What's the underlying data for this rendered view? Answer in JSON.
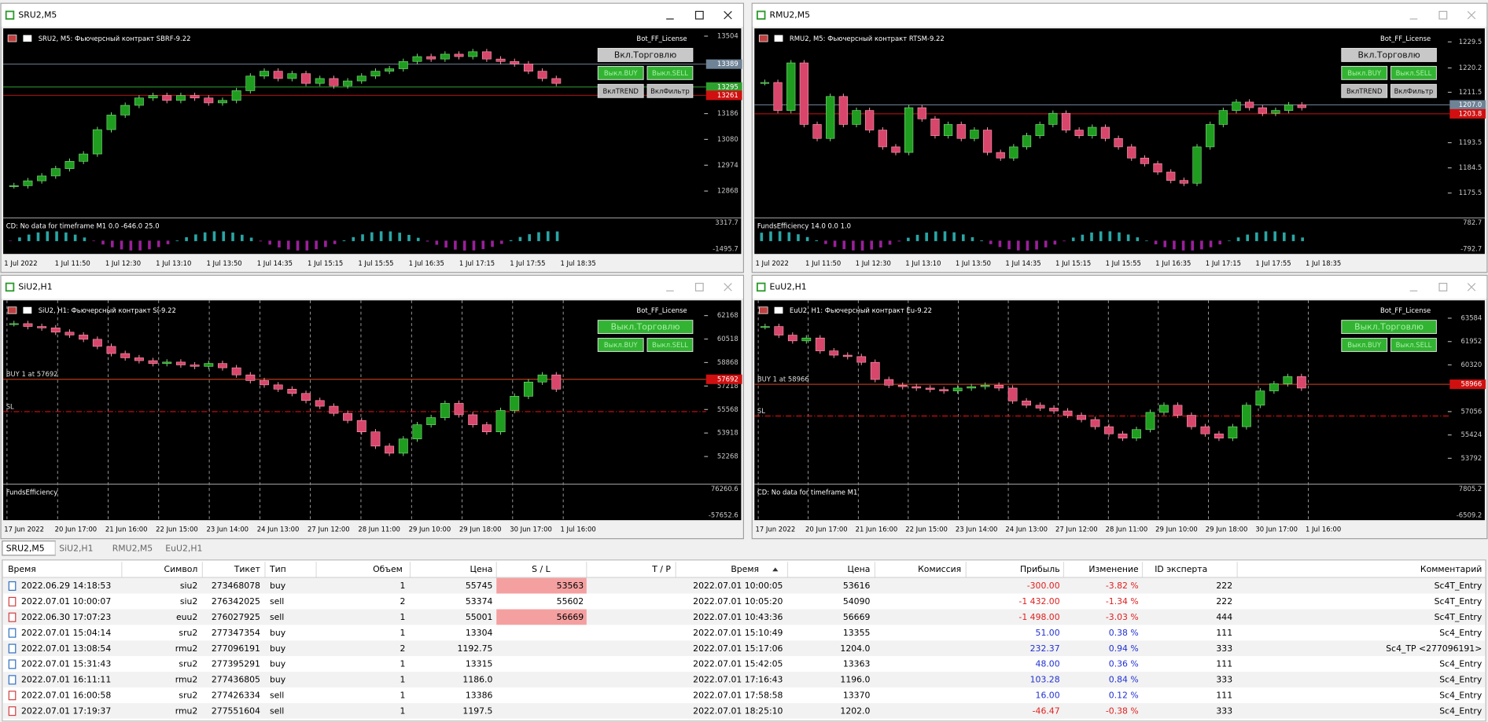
{
  "windows": [
    {
      "title": "SRU2,M5",
      "header": "SRU2, M5:  Фьючерсный контракт SBRF-9.22",
      "license": "Bot_FF_License",
      "buttons": [
        "Вкл.Торговлю",
        "Выкл.BUY",
        "Выкл.SELL",
        "ВклTREND",
        "ВклФильтр"
      ],
      "ylim": [
        12777,
        13524
      ],
      "yticks": [
        13504,
        13186,
        13080,
        12974,
        12868
      ],
      "price_tags": [
        {
          "value": 13389,
          "color": "#6f8396"
        },
        {
          "value": 13295,
          "color": "#2ea02e"
        },
        {
          "value": 13261,
          "color": "#d01010"
        }
      ],
      "notes": [],
      "grid": false,
      "closes": [
        12890,
        12910,
        12930,
        12960,
        12990,
        13020,
        13120,
        13180,
        13220,
        13250,
        13260,
        13240,
        13260,
        13250,
        13230,
        13240,
        13280,
        13340,
        13360,
        13330,
        13350,
        13310,
        13330,
        13300,
        13320,
        13340,
        13360,
        13370,
        13400,
        13420,
        13410,
        13430,
        13420,
        13440,
        13410,
        13400,
        13390,
        13360,
        13330,
        13310
      ],
      "indicator": {
        "label": "CD: No data for timeframe M1 0.0 -646.0 25.0",
        "ticks": [
          3317.7,
          -1495.7
        ]
      },
      "time_labels": [
        "1 Jul 2022",
        "1 Jul 11:50",
        "1 Jul 12:30",
        "1 Jul 13:10",
        "1 Jul 13:50",
        "1 Jul 14:35",
        "1 Jul 15:15",
        "1 Jul 15:55",
        "1 Jul 16:35",
        "1 Jul 17:15",
        "1 Jul 17:55",
        "1 Jul 18:35"
      ]
    },
    {
      "title": "RMU2,M5",
      "header": "RMU2, M5:  Фьючерсный контракт RTSM-9.22",
      "license": "Bot_FF_License",
      "buttons": [
        "Вкл.Торговлю",
        "Выкл.BUY",
        "Выкл.SELL",
        "ВклTREND",
        "ВклФильтр"
      ],
      "ylim": [
        1168.3,
        1233.3
      ],
      "yticks": [
        1229.5,
        1220.2,
        1211.5,
        1193.5,
        1184.5,
        1175.5
      ],
      "price_tags": [
        {
          "value": 1207,
          "label": "1207.0",
          "color": "#6f8396"
        },
        {
          "value": 1203.8,
          "color": "#d01010"
        }
      ],
      "notes": [],
      "grid": false,
      "closes": [
        1215,
        1205,
        1222,
        1200,
        1195,
        1210,
        1200,
        1205,
        1198,
        1192,
        1190,
        1206,
        1202,
        1196,
        1200,
        1195,
        1198,
        1190,
        1188,
        1192,
        1196,
        1200,
        1204,
        1198,
        1196,
        1199,
        1195,
        1192,
        1188,
        1186,
        1183,
        1180,
        1179,
        1192,
        1200,
        1205,
        1208,
        1206,
        1204,
        1205,
        1207,
        1206
      ],
      "indicator": {
        "label": "FundsEfficiency 14.0 0.0 1.0",
        "ticks": [
          782.7,
          -792.7
        ]
      },
      "time_labels": [
        "1 Jul 2022",
        "1 Jul 11:50",
        "1 Jul 12:30",
        "1 Jul 13:10",
        "1 Jul 13:50",
        "1 Jul 14:35",
        "1 Jul 15:15",
        "1 Jul 15:55",
        "1 Jul 16:35",
        "1 Jul 17:15",
        "1 Jul 17:55",
        "1 Jul 18:35"
      ]
    },
    {
      "title": "SiU2,H1",
      "header": "SiU2, H1:  Фьючерсный контракт Si-9.22",
      "license": "Bot_FF_License",
      "buttons": [
        "Выкл.Торговлю",
        "Выкл.BUY",
        "Выкл.SELL"
      ],
      "ylim": [
        50659,
        63034
      ],
      "yticks": [
        62168,
        60518,
        58868,
        57218,
        55568,
        53918,
        52268
      ],
      "price_tags": [
        {
          "value": 57692,
          "color": "#d01010"
        }
      ],
      "notes": [
        {
          "text": "BUY 1 at 57692",
          "value": 57692,
          "color": "#2ea02e"
        },
        {
          "text": "SL",
          "value": 55420,
          "color": "#d01010"
        }
      ],
      "grid": true,
      "closes": [
        61600,
        61400,
        61300,
        61000,
        60800,
        60500,
        60000,
        59500,
        59200,
        59000,
        58800,
        58900,
        58700,
        58600,
        58800,
        58500,
        58000,
        57600,
        57300,
        57000,
        56700,
        56200,
        55800,
        55300,
        54800,
        54000,
        53000,
        52500,
        53500,
        54500,
        55000,
        56000,
        55200,
        54500,
        54000,
        55500,
        56500,
        57500,
        58000,
        57000
      ],
      "indicator": {
        "label": "FundsEfficiency",
        "ticks": [
          76260.6,
          -57652.6
        ]
      },
      "time_labels": [
        "17 Jun 2022",
        "20 Jun 17:00",
        "21 Jun 16:00",
        "22 Jun 15:00",
        "23 Jun 14:00",
        "24 Jun 13:00",
        "27 Jun 12:00",
        "28 Jun 11:00",
        "29 Jun 10:00",
        "29 Jun 18:00",
        "30 Jun 17:00",
        "1 Jul 16:00"
      ]
    },
    {
      "title": "EuU2,H1",
      "header": "EuU2, H1:  Фьючерсный контракт Eu-9.22",
      "license": "Bot_FF_License",
      "buttons": [
        "Выкл.Торговлю",
        "Выкл.BUY",
        "Выкл.SELL"
      ],
      "ylim": [
        52314,
        64631
      ],
      "yticks": [
        63584,
        61952,
        60320,
        57056,
        55424,
        53792
      ],
      "price_tags": [
        {
          "value": 58966,
          "color": "#d01010"
        }
      ],
      "notes": [
        {
          "text": "BUY 1 at 58966",
          "value": 58966,
          "color": "#2ea02e"
        },
        {
          "text": "SL",
          "value": 56750,
          "color": "#d01010"
        }
      ],
      "grid": true,
      "closes": [
        63000,
        62400,
        62000,
        62200,
        61300,
        61000,
        60900,
        60500,
        59300,
        58900,
        58800,
        58700,
        58600,
        58500,
        58700,
        58800,
        58900,
        58700,
        57800,
        57500,
        57300,
        57100,
        56800,
        56500,
        56000,
        55500,
        55200,
        55800,
        57000,
        57500,
        56800,
        56000,
        55500,
        55200,
        56000,
        57500,
        58500,
        59000,
        59500,
        58700
      ],
      "indicator": {
        "label": "CD: No data for timeframe M1",
        "ticks": [
          7805.2,
          -6509.2
        ]
      },
      "time_labels": [
        "17 Jun 2022",
        "20 Jun 17:00",
        "21 Jun 16:00",
        "22 Jun 15:00",
        "23 Jun 14:00",
        "24 Jun 13:00",
        "27 Jun 12:00",
        "28 Jun 11:00",
        "29 Jun 10:00",
        "29 Jun 18:00",
        "30 Jun 17:00",
        "1 Jul 16:00"
      ]
    }
  ],
  "tabs": [
    "SRU2,M5",
    "SiU2,H1",
    "RMU2,M5",
    "EuU2,H1"
  ],
  "table": {
    "headers": [
      "Время",
      "Символ",
      "Тикет",
      "Тип",
      "Объем",
      "Цена",
      "S / L",
      "T / P",
      "Время",
      "Цена",
      "Комиссия",
      "Прибыль",
      "Изменение",
      "ID эксперта",
      "Комментарий"
    ],
    "highlighted_sl_rows": [
      0,
      2
    ],
    "rows": [
      [
        "2022.06.29 14:18:53",
        "siu2",
        "273468078",
        "buy",
        "1",
        "55745",
        "53563",
        null,
        "2022.07.01 10:00:05",
        "53616",
        null,
        "-300.00",
        "-3.82 %",
        "222",
        "Sc4T_Entry"
      ],
      [
        "2022.07.01 10:00:07",
        "siu2",
        "276342025",
        "sell",
        "2",
        "53374",
        "55602",
        null,
        "2022.07.01 10:05:20",
        "54090",
        null,
        "-1 432.00",
        "-1.34 %",
        "222",
        "Sc4T_Entry"
      ],
      [
        "2022.06.30 17:07:23",
        "euu2",
        "276027925",
        "sell",
        "1",
        "55001",
        "56669",
        null,
        "2022.07.01 10:43:36",
        "56669",
        null,
        "-1 498.00",
        "-3.03 %",
        "444",
        "Sc4T_Entry"
      ],
      [
        "2022.07.01 15:04:14",
        "sru2",
        "277347354",
        "buy",
        "1",
        "13304",
        null,
        null,
        "2022.07.01 15:10:49",
        "13355",
        null,
        "51.00",
        "0.38 %",
        "111",
        "Sc4_Entry"
      ],
      [
        "2022.07.01 13:08:54",
        "rmu2",
        "277096191",
        "buy",
        "2",
        "1192.75",
        null,
        null,
        "2022.07.01 15:17:06",
        "1204.0",
        null,
        "232.37",
        "0.94 %",
        "333",
        "Sc4_TP <277096191>"
      ],
      [
        "2022.07.01 15:31:43",
        "sru2",
        "277395291",
        "buy",
        "1",
        "13315",
        null,
        null,
        "2022.07.01 15:42:05",
        "13363",
        null,
        "48.00",
        "0.36 %",
        "111",
        "Sc4_Entry"
      ],
      [
        "2022.07.01 16:11:11",
        "rmu2",
        "277436805",
        "buy",
        "1",
        "1186.0",
        null,
        null,
        "2022.07.01 17:16:43",
        "1196.0",
        null,
        "103.28",
        "0.84 %",
        "333",
        "Sc4_Entry"
      ],
      [
        "2022.07.01 16:00:58",
        "sru2",
        "277426334",
        "sell",
        "1",
        "13386",
        null,
        null,
        "2022.07.01 17:58:58",
        "13370",
        null,
        "16.00",
        "0.12 %",
        "111",
        "Sc4_Entry"
      ],
      [
        "2022.07.01 17:19:37",
        "rmu2",
        "277551604",
        "sell",
        "1",
        "1197.5",
        null,
        null,
        "2022.07.01 18:25:10",
        "1202.0",
        null,
        "-46.47",
        "-0.38 %",
        "333",
        "Sc4_Entry"
      ]
    ]
  }
}
